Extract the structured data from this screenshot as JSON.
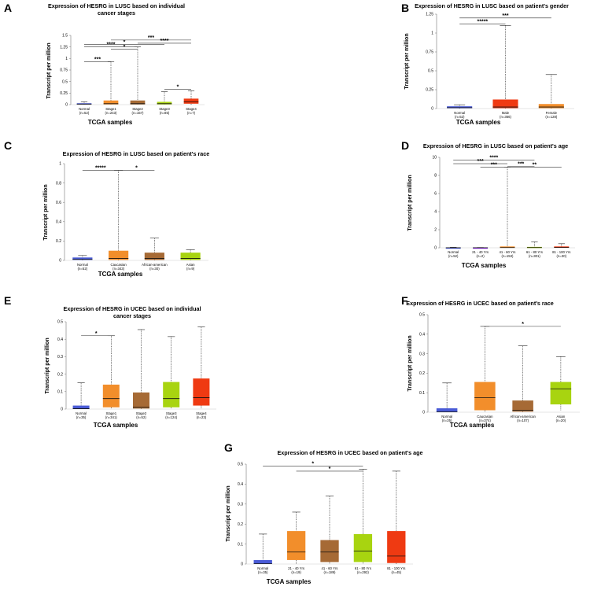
{
  "panels": [
    {
      "label": "A",
      "title": "Expression of HESRG in LUSC based on individual cancer stages",
      "ylabel": "Transcript per million",
      "xlabel": "TCGA samples",
      "ylim": [
        0,
        1.5
      ],
      "yticks": [
        "0",
        "0.25",
        "0.5",
        "0.75",
        "1",
        "1.25",
        "1.5"
      ],
      "categories": [
        "Normal",
        "Stage1",
        "Stage2",
        "Stage3",
        "Stage4"
      ],
      "counts": [
        "(n=52)",
        "(n=243)",
        "(n=157)",
        "(n=85)",
        "(n=7)"
      ],
      "significance": [
        "***",
        "****",
        "*",
        "*",
        "***",
        "****",
        "*"
      ],
      "chart_data": {
        "type": "box",
        "title": "Expression of HESRG in LUSC based on individual cancer stages",
        "xlabel": "TCGA samples",
        "ylabel": "Transcript per million",
        "ylim": [
          0,
          1.5
        ],
        "categories": [
          "Normal",
          "Stage1",
          "Stage2",
          "Stage3",
          "Stage4"
        ],
        "series": [
          {
            "name": "Normal",
            "min": 0,
            "q1": 0.005,
            "median": 0.012,
            "q3": 0.03,
            "max": 0.06,
            "color": "#4a5bd6"
          },
          {
            "name": "Stage1",
            "min": 0,
            "q1": 0.005,
            "median": 0.02,
            "q3": 0.09,
            "max": 0.93,
            "color": "#f28e2b"
          },
          {
            "name": "Stage2",
            "min": 0,
            "q1": 0.005,
            "median": 0.02,
            "q3": 0.09,
            "max": 1.25,
            "color": "#a66a35"
          },
          {
            "name": "Stage3",
            "min": 0,
            "q1": 0.005,
            "median": 0.02,
            "q3": 0.06,
            "max": 0.28,
            "color": "#a8d410"
          },
          {
            "name": "Stage4",
            "min": 0,
            "q1": 0.02,
            "median": 0.06,
            "q3": 0.13,
            "max": 0.3,
            "color": "#ef3a12"
          }
        ]
      }
    },
    {
      "label": "B",
      "title": "Expression of HESRG in LUSC based on patient's gender",
      "ylabel": "Transcript per million",
      "xlabel": "TCGA samples",
      "ylim": [
        0,
        1.25
      ],
      "yticks": [
        "0",
        "0.25",
        "0.5",
        "0.75",
        "1",
        "1.25"
      ],
      "categories": [
        "Normal",
        "Male",
        "Female"
      ],
      "counts": [
        "(n=52)",
        "(n=366)",
        "(n=128)"
      ],
      "significance": [
        "*****",
        "***"
      ],
      "chart_data": {
        "type": "box",
        "title": "Expression of HESRG in LUSC based on patient's gender",
        "xlabel": "TCGA samples",
        "ylabel": "Transcript per million",
        "ylim": [
          0,
          1.25
        ],
        "categories": [
          "Normal",
          "Male",
          "Female"
        ],
        "series": [
          {
            "name": "Normal",
            "min": 0,
            "q1": 0.005,
            "median": 0.012,
            "q3": 0.03,
            "max": 0.05,
            "color": "#4a5bd6"
          },
          {
            "name": "Male",
            "min": 0,
            "q1": 0.005,
            "median": 0.02,
            "q3": 0.12,
            "max": 1.1,
            "color": "#ef3a12"
          },
          {
            "name": "Female",
            "min": 0,
            "q1": 0.005,
            "median": 0.02,
            "q3": 0.06,
            "max": 0.45,
            "color": "#f28e2b"
          }
        ]
      }
    },
    {
      "label": "C",
      "title": "Expression of HESRG in LUSC based on patient's race",
      "ylabel": "Transcript per million",
      "xlabel": "TCGA samples",
      "ylim": [
        0,
        1
      ],
      "yticks": [
        "0",
        "0.2",
        "0.4",
        "0.6",
        "0.8",
        "1"
      ],
      "categories": [
        "Normal",
        "Caucasian",
        "African-american",
        "Asian"
      ],
      "counts": [
        "(n=52)",
        "(n=343)",
        "(n=30)",
        "(n=9)"
      ],
      "significance": [
        "*****",
        "*"
      ],
      "chart_data": {
        "type": "box",
        "title": "Expression of HESRG in LUSC based on patient's race",
        "xlabel": "TCGA samples",
        "ylabel": "Transcript per million",
        "ylim": [
          0,
          1
        ],
        "categories": [
          "Normal",
          "Caucasian",
          "African-american",
          "Asian"
        ],
        "series": [
          {
            "name": "Normal",
            "min": 0,
            "q1": 0.005,
            "median": 0.012,
            "q3": 0.03,
            "max": 0.05,
            "color": "#4a5bd6"
          },
          {
            "name": "Caucasian",
            "min": 0,
            "q1": 0.005,
            "median": 0.02,
            "q3": 0.1,
            "max": 0.93,
            "color": "#f28e2b"
          },
          {
            "name": "African-american",
            "min": 0,
            "q1": 0.005,
            "median": 0.02,
            "q3": 0.08,
            "max": 0.23,
            "color": "#a66a35"
          },
          {
            "name": "Asian",
            "min": 0,
            "q1": 0.005,
            "median": 0.02,
            "q3": 0.08,
            "max": 0.11,
            "color": "#a8d410"
          }
        ]
      }
    },
    {
      "label": "D",
      "title": "Expression of HESRG in LUSC based on patient's age",
      "ylabel": "Transcript per million",
      "xlabel": "TCGA samples",
      "ylim": [
        0,
        10
      ],
      "yticks": [
        "0",
        "2",
        "4",
        "6",
        "8",
        "10"
      ],
      "categories": [
        "Normal",
        "21 - 40 Yrs",
        "41 - 60 Yrs",
        "61 - 80 Yrs",
        "81 - 100 Yrs"
      ],
      "counts": [
        "(n=52)",
        "(n=2)",
        "(n=153)",
        "(n=301)",
        "(n=30)"
      ],
      "significance": [
        "****",
        "***",
        "***",
        "***",
        "**"
      ],
      "chart_data": {
        "type": "box",
        "title": "Expression of HESRG in LUSC based on patient's age",
        "xlabel": "TCGA samples",
        "ylabel": "Transcript per million",
        "ylim": [
          0,
          10
        ],
        "categories": [
          "Normal",
          "21 - 40 Yrs",
          "41 - 60 Yrs",
          "61 - 80 Yrs",
          "81 - 100 Yrs"
        ],
        "series": [
          {
            "name": "Normal",
            "min": 0,
            "q1": 0.005,
            "median": 0.01,
            "q3": 0.02,
            "max": 0.05,
            "color": "#4a5bd6"
          },
          {
            "name": "21 - 40 Yrs",
            "min": 0,
            "q1": 0.005,
            "median": 0.01,
            "q3": 0.02,
            "max": 0.03,
            "color": "#8a2be2"
          },
          {
            "name": "41 - 60 Yrs",
            "min": 0,
            "q1": 0.005,
            "median": 0.02,
            "q3": 0.15,
            "max": 8.9,
            "color": "#f28e2b"
          },
          {
            "name": "61 - 80 Yrs",
            "min": 0,
            "q1": 0.005,
            "median": 0.02,
            "q3": 0.1,
            "max": 0.65,
            "color": "#a8d410"
          },
          {
            "name": "81 - 100 Yrs",
            "min": 0,
            "q1": 0.005,
            "median": 0.03,
            "q3": 0.15,
            "max": 0.45,
            "color": "#ef3a12"
          }
        ]
      }
    },
    {
      "label": "E",
      "title": "Expression of HESRG in UCEC based on individual cancer stages",
      "ylabel": "Transcript per million",
      "xlabel": "TCGA samples",
      "ylim": [
        0,
        0.5
      ],
      "yticks": [
        "0",
        "0.1",
        "0.2",
        "0.3",
        "0.4",
        "0.5"
      ],
      "categories": [
        "Normal",
        "Stage1",
        "Stage2",
        "Stage3",
        "Stage4"
      ],
      "counts": [
        "(n=35)",
        "(n=341)",
        "(n=52)",
        "(n=124)",
        "(n=23)"
      ],
      "significance": [
        "*"
      ],
      "chart_data": {
        "type": "box",
        "title": "Expression of HESRG in UCEC based on individual cancer stages",
        "xlabel": "TCGA samples",
        "ylabel": "Transcript per million",
        "ylim": [
          0,
          0.5
        ],
        "categories": [
          "Normal",
          "Stage1",
          "Stage2",
          "Stage3",
          "Stage4"
        ],
        "series": [
          {
            "name": "Normal",
            "min": 0,
            "q1": 0.001,
            "median": 0.002,
            "q3": 0.02,
            "max": 0.15,
            "color": "#4a5bd6"
          },
          {
            "name": "Stage1",
            "min": 0,
            "q1": 0.01,
            "median": 0.06,
            "q3": 0.14,
            "max": 0.42,
            "color": "#f28e2b"
          },
          {
            "name": "Stage2",
            "min": 0,
            "q1": 0.003,
            "median": 0.01,
            "q3": 0.095,
            "max": 0.455,
            "color": "#a66a35"
          },
          {
            "name": "Stage3",
            "min": 0,
            "q1": 0.01,
            "median": 0.06,
            "q3": 0.155,
            "max": 0.415,
            "color": "#a8d410"
          },
          {
            "name": "Stage4",
            "min": 0,
            "q1": 0.02,
            "median": 0.065,
            "q3": 0.175,
            "max": 0.47,
            "color": "#ef3a12"
          }
        ]
      }
    },
    {
      "label": "F",
      "title": "Expression of HESRG in UCEC based on patient's race",
      "ylabel": "Transcript per million",
      "xlabel": "TCGA samples",
      "ylim": [
        0,
        0.5
      ],
      "yticks": [
        "0",
        "0.1",
        "0.2",
        "0.3",
        "0.4",
        "0.5"
      ],
      "categories": [
        "Normal",
        "Caucasian",
        "African-american",
        "Asian"
      ],
      "counts": [
        "(n=35)",
        "(n=374)",
        "(n=107)",
        "(n=20)"
      ],
      "significance": [
        "*"
      ],
      "chart_data": {
        "type": "box",
        "title": "Expression of HESRG in UCEC based on patient's race",
        "xlabel": "TCGA samples",
        "ylabel": "Transcript per million",
        "ylim": [
          0,
          0.5
        ],
        "categories": [
          "Normal",
          "Caucasian",
          "African-american",
          "Asian"
        ],
        "series": [
          {
            "name": "Normal",
            "min": 0,
            "q1": 0.001,
            "median": 0.002,
            "q3": 0.02,
            "max": 0.15,
            "color": "#4a5bd6"
          },
          {
            "name": "Caucasian",
            "min": 0,
            "q1": 0.01,
            "median": 0.075,
            "q3": 0.155,
            "max": 0.44,
            "color": "#f28e2b"
          },
          {
            "name": "African-american",
            "min": 0,
            "q1": 0.003,
            "median": 0.01,
            "q3": 0.06,
            "max": 0.34,
            "color": "#a66a35"
          },
          {
            "name": "Asian",
            "min": 0.01,
            "q1": 0.04,
            "median": 0.12,
            "q3": 0.155,
            "max": 0.285,
            "color": "#a8d410"
          }
        ]
      }
    },
    {
      "label": "G",
      "title": "Expression of HESRG in UCEC based on patient's age",
      "ylabel": "Transcript per million",
      "xlabel": "TCGA samples",
      "ylim": [
        0,
        0.5
      ],
      "yticks": [
        "0",
        "0.1",
        "0.2",
        "0.3",
        "0.4",
        "0.5"
      ],
      "categories": [
        "Normal",
        "21 - 40 Yrs",
        "41 - 60 Yrs",
        "61 - 80 Yrs",
        "81 - 100 Yrs"
      ],
      "counts": [
        "(n=35)",
        "(n=19)",
        "(n=189)",
        "(n=292)",
        "(n=45)"
      ],
      "significance": [
        "*",
        "*"
      ],
      "chart_data": {
        "type": "box",
        "title": "Expression of HESRG in UCEC based on patient's age",
        "xlabel": "TCGA samples",
        "ylabel": "Transcript per million",
        "ylim": [
          0,
          0.5
        ],
        "categories": [
          "Normal",
          "21 - 40 Yrs",
          "41 - 60 Yrs",
          "61 - 80 Yrs",
          "81 - 100 Yrs"
        ],
        "series": [
          {
            "name": "Normal",
            "min": 0,
            "q1": 0.001,
            "median": 0.002,
            "q3": 0.02,
            "max": 0.15,
            "color": "#4a5bd6"
          },
          {
            "name": "21 - 40 Yrs",
            "min": 0,
            "q1": 0.02,
            "median": 0.06,
            "q3": 0.165,
            "max": 0.26,
            "color": "#f28e2b"
          },
          {
            "name": "41 - 60 Yrs",
            "min": 0,
            "q1": 0.01,
            "median": 0.06,
            "q3": 0.12,
            "max": 0.34,
            "color": "#a66a35"
          },
          {
            "name": "61 - 80 Yrs",
            "min": 0,
            "q1": 0.01,
            "median": 0.065,
            "q3": 0.15,
            "max": 0.475,
            "color": "#a8d410"
          },
          {
            "name": "81 - 100 Yrs",
            "min": 0,
            "q1": 0.005,
            "median": 0.04,
            "q3": 0.165,
            "max": 0.465,
            "color": "#ef3a12"
          }
        ]
      }
    }
  ]
}
